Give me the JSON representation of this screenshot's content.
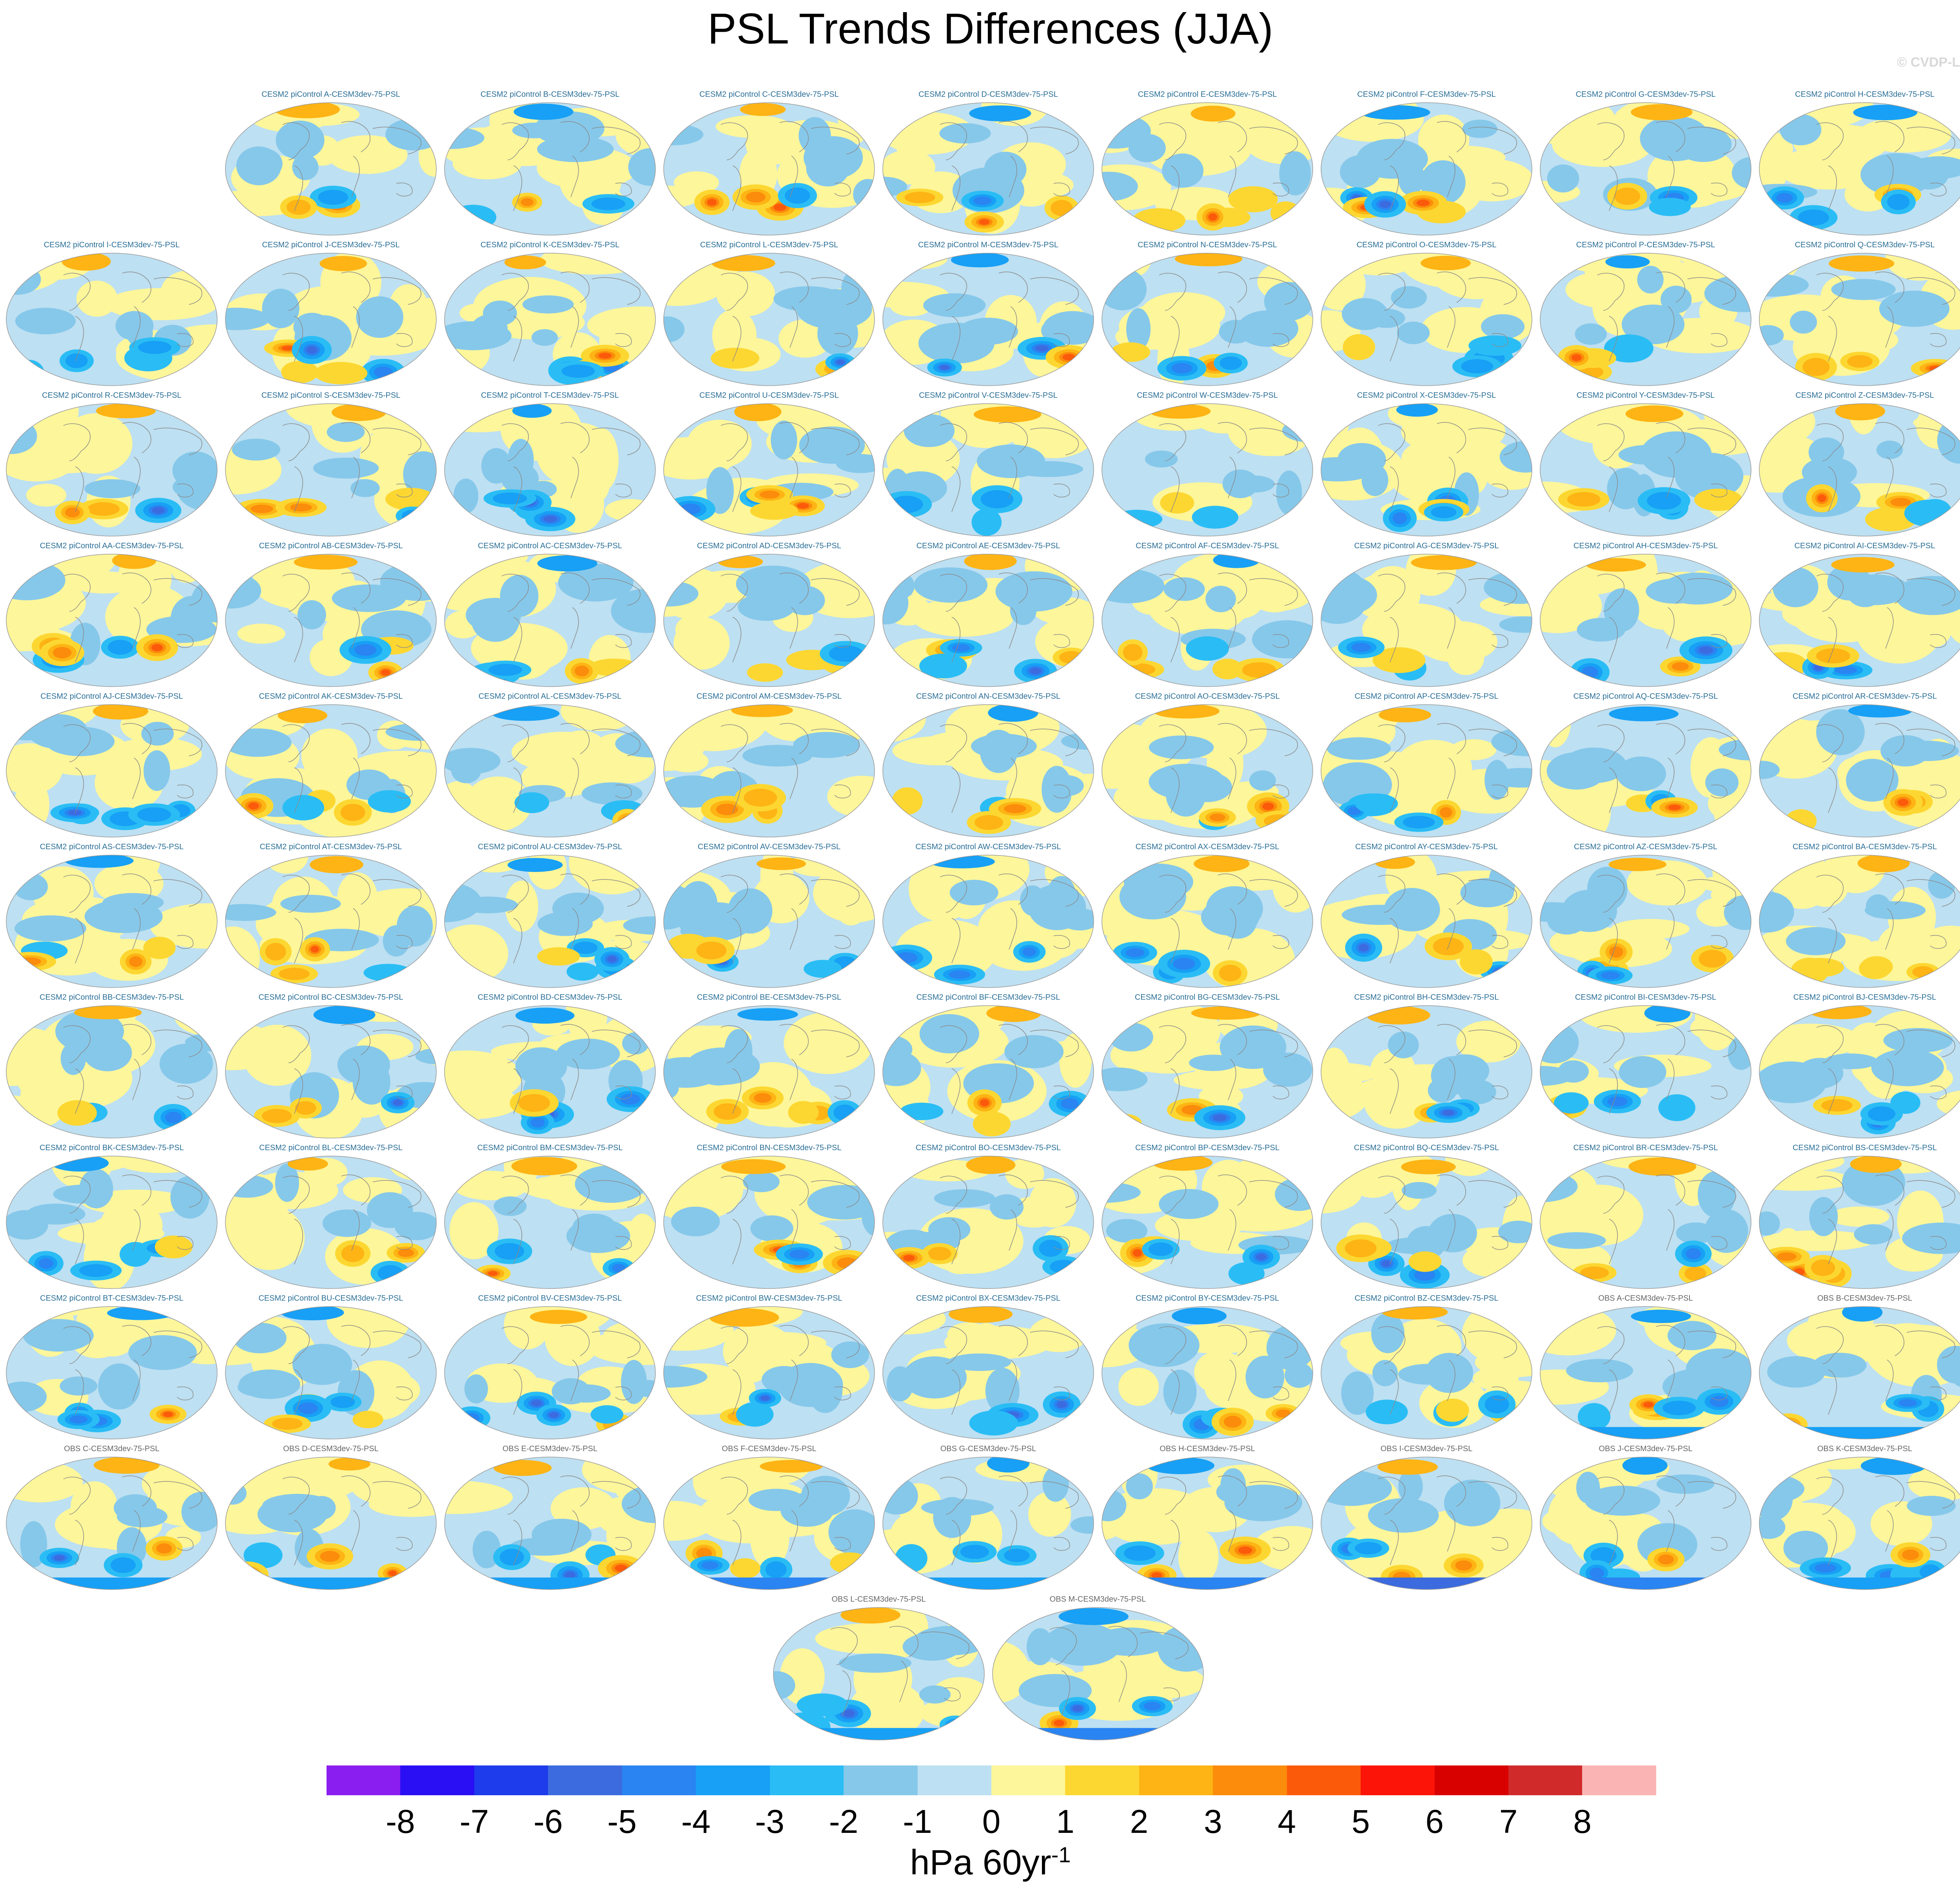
{
  "chart_data": {
    "type": "heatmap",
    "title": "PSL Trends Differences (JJA)",
    "credit": "© CVDP-LE",
    "units": {
      "base": "hPa 60yr",
      "exponent": "-1"
    },
    "colorbar": {
      "ticks": [
        "-8",
        "-7",
        "-6",
        "-5",
        "-4",
        "-3",
        "-2",
        "-1",
        "0",
        "1",
        "2",
        "3",
        "4",
        "5",
        "6",
        "7",
        "8"
      ],
      "colors": [
        "#8a1ef0",
        "#2a0ff5",
        "#1e3ceb",
        "#3c6be0",
        "#2a84f2",
        "#17a0f5",
        "#2abdf5",
        "#86c8ea",
        "#bde0f2",
        "#fdf69a",
        "#fdd731",
        "#fdb414",
        "#fc8c0b",
        "#fc5a0b",
        "#fc1409",
        "#d90000",
        "#d02a2a",
        "#fbb4b4"
      ]
    },
    "panel_titles": [
      "CESM2 piControl A-CESM3dev-75-PSL",
      "CESM2 piControl B-CESM3dev-75-PSL",
      "CESM2 piControl C-CESM3dev-75-PSL",
      "CESM2 piControl D-CESM3dev-75-PSL",
      "CESM2 piControl E-CESM3dev-75-PSL",
      "CESM2 piControl F-CESM3dev-75-PSL",
      "CESM2 piControl G-CESM3dev-75-PSL",
      "CESM2 piControl H-CESM3dev-75-PSL",
      "CESM2 piControl I-CESM3dev-75-PSL",
      "CESM2 piControl J-CESM3dev-75-PSL",
      "CESM2 piControl K-CESM3dev-75-PSL",
      "CESM2 piControl L-CESM3dev-75-PSL",
      "CESM2 piControl M-CESM3dev-75-PSL",
      "CESM2 piControl N-CESM3dev-75-PSL",
      "CESM2 piControl O-CESM3dev-75-PSL",
      "CESM2 piControl P-CESM3dev-75-PSL",
      "CESM2 piControl Q-CESM3dev-75-PSL",
      "CESM2 piControl R-CESM3dev-75-PSL",
      "CESM2 piControl S-CESM3dev-75-PSL",
      "CESM2 piControl T-CESM3dev-75-PSL",
      "CESM2 piControl U-CESM3dev-75-PSL",
      "CESM2 piControl V-CESM3dev-75-PSL",
      "CESM2 piControl W-CESM3dev-75-PSL",
      "CESM2 piControl X-CESM3dev-75-PSL",
      "CESM2 piControl Y-CESM3dev-75-PSL",
      "CESM2 piControl Z-CESM3dev-75-PSL",
      "CESM2 piControl AA-CESM3dev-75-PSL",
      "CESM2 piControl AB-CESM3dev-75-PSL",
      "CESM2 piControl AC-CESM3dev-75-PSL",
      "CESM2 piControl AD-CESM3dev-75-PSL",
      "CESM2 piControl AE-CESM3dev-75-PSL",
      "CESM2 piControl AF-CESM3dev-75-PSL",
      "CESM2 piControl AG-CESM3dev-75-PSL",
      "CESM2 piControl AH-CESM3dev-75-PSL",
      "CESM2 piControl AI-CESM3dev-75-PSL",
      "CESM2 piControl AJ-CESM3dev-75-PSL",
      "CESM2 piControl AK-CESM3dev-75-PSL",
      "CESM2 piControl AL-CESM3dev-75-PSL",
      "CESM2 piControl AM-CESM3dev-75-PSL",
      "CESM2 piControl AN-CESM3dev-75-PSL",
      "CESM2 piControl AO-CESM3dev-75-PSL",
      "CESM2 piControl AP-CESM3dev-75-PSL",
      "CESM2 piControl AQ-CESM3dev-75-PSL",
      "CESM2 piControl AR-CESM3dev-75-PSL",
      "CESM2 piControl AS-CESM3dev-75-PSL",
      "CESM2 piControl AT-CESM3dev-75-PSL",
      "CESM2 piControl AU-CESM3dev-75-PSL",
      "CESM2 piControl AV-CESM3dev-75-PSL",
      "CESM2 piControl AW-CESM3dev-75-PSL",
      "CESM2 piControl AX-CESM3dev-75-PSL",
      "CESM2 piControl AY-CESM3dev-75-PSL",
      "CESM2 piControl AZ-CESM3dev-75-PSL",
      "CESM2 piControl BA-CESM3dev-75-PSL",
      "CESM2 piControl BB-CESM3dev-75-PSL",
      "CESM2 piControl BC-CESM3dev-75-PSL",
      "CESM2 piControl BD-CESM3dev-75-PSL",
      "CESM2 piControl BE-CESM3dev-75-PSL",
      "CESM2 piControl BF-CESM3dev-75-PSL",
      "CESM2 piControl BG-CESM3dev-75-PSL",
      "CESM2 piControl BH-CESM3dev-75-PSL",
      "CESM2 piControl BI-CESM3dev-75-PSL",
      "CESM2 piControl BJ-CESM3dev-75-PSL",
      "CESM2 piControl BK-CESM3dev-75-PSL",
      "CESM2 piControl BL-CESM3dev-75-PSL",
      "CESM2 piControl BM-CESM3dev-75-PSL",
      "CESM2 piControl BN-CESM3dev-75-PSL",
      "CESM2 piControl BO-CESM3dev-75-PSL",
      "CESM2 piControl BP-CESM3dev-75-PSL",
      "CESM2 piControl BQ-CESM3dev-75-PSL",
      "CESM2 piControl BR-CESM3dev-75-PSL",
      "CESM2 piControl BS-CESM3dev-75-PSL",
      "CESM2 piControl BT-CESM3dev-75-PSL",
      "CESM2 piControl BU-CESM3dev-75-PSL",
      "CESM2 piControl BV-CESM3dev-75-PSL",
      "CESM2 piControl BW-CESM3dev-75-PSL",
      "CESM2 piControl BX-CESM3dev-75-PSL",
      "CESM2 piControl BY-CESM3dev-75-PSL",
      "CESM2 piControl BZ-CESM3dev-75-PSL",
      "OBS A-CESM3dev-75-PSL",
      "OBS B-CESM3dev-75-PSL",
      "OBS C-CESM3dev-75-PSL",
      "OBS D-CESM3dev-75-PSL",
      "OBS E-CESM3dev-75-PSL",
      "OBS F-CESM3dev-75-PSL",
      "OBS G-CESM3dev-75-PSL",
      "OBS H-CESM3dev-75-PSL",
      "OBS I-CESM3dev-75-PSL",
      "OBS J-CESM3dev-75-PSL",
      "OBS K-CESM3dev-75-PSL",
      "OBS L-CESM3dev-75-PSL",
      "OBS M-CESM3dev-75-PSL"
    ],
    "rows": [
      {
        "start_col": 1,
        "count": 8
      },
      {
        "start_col": 0,
        "count": 9
      },
      {
        "start_col": 0,
        "count": 9
      },
      {
        "start_col": 0,
        "count": 9
      },
      {
        "start_col": 0,
        "count": 9
      },
      {
        "start_col": 0,
        "count": 9
      },
      {
        "start_col": 0,
        "count": 9
      },
      {
        "start_col": 0,
        "count": 9
      },
      {
        "start_col": 0,
        "count": 9
      },
      {
        "start_col": 0,
        "count": 9
      },
      {
        "start_col": 3.5,
        "count": 2
      }
    ]
  }
}
